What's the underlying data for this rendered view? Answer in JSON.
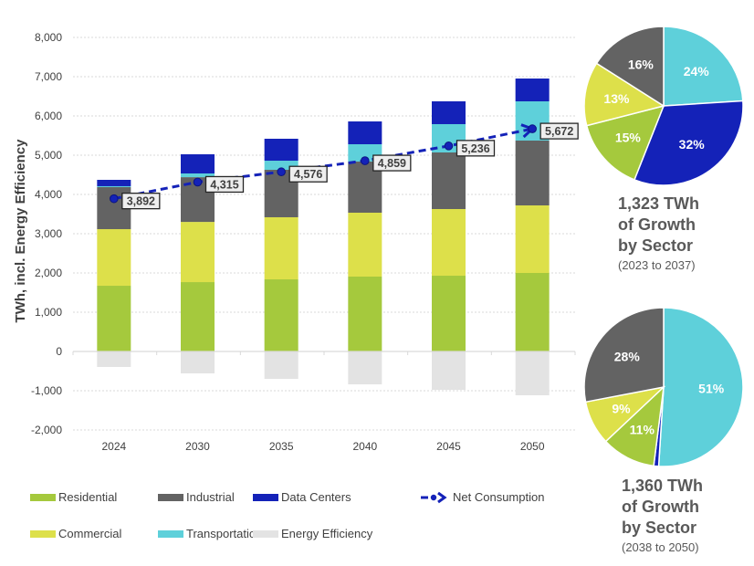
{
  "chart_data": [
    {
      "type": "bar",
      "stacked": true,
      "title": "",
      "xlabel": "",
      "ylabel": "TWh, incl. Energy Efficiency",
      "ylim": [
        -2000,
        8000
      ],
      "yticks": [
        -2000,
        -1000,
        0,
        1000,
        2000,
        3000,
        4000,
        5000,
        6000,
        7000,
        8000
      ],
      "ytick_labels": [
        "-2,000",
        "-1,000",
        "0",
        "1,000",
        "2,000",
        "3,000",
        "4,000",
        "5,000",
        "6,000",
        "7,000",
        "8,000"
      ],
      "grid": true,
      "categories": [
        "2024",
        "2030",
        "2035",
        "2040",
        "2045",
        "2050"
      ],
      "series": [
        {
          "name": "Residential",
          "color": "#a5c93d",
          "values": [
            1674,
            1767,
            1837,
            1907,
            1930,
            2000
          ]
        },
        {
          "name": "Commercial",
          "color": "#dde04a",
          "values": [
            1442,
            1533,
            1582,
            1628,
            1698,
            1721
          ]
        },
        {
          "name": "Industrial",
          "color": "#636363",
          "values": [
            1070,
            1140,
            1209,
            1302,
            1442,
            1651
          ]
        },
        {
          "name": "Transportation",
          "color": "#5ed0da",
          "values": [
            24,
            95,
            232,
            442,
            721,
            1000
          ]
        },
        {
          "name": "Data Centers",
          "color": "#1422b8",
          "values": [
            162,
            488,
            559,
            581,
            581,
            581
          ]
        },
        {
          "name": "Energy Efficiency",
          "color": "#e3e3e3",
          "values": [
            -395,
            -558,
            -698,
            -837,
            -977,
            -1116
          ]
        }
      ],
      "line_series": {
        "name": "Net Consumption",
        "color": "#1422b8",
        "style": "dashed",
        "values": [
          3892,
          4315,
          4576,
          4859,
          5236,
          5672
        ],
        "labels": [
          "3,892",
          "4,315",
          "4,576",
          "4,859",
          "5,236",
          "5,672"
        ]
      },
      "legend": {
        "placement": "bottom",
        "rows": [
          [
            "Residential",
            "Industrial",
            "Data Centers",
            "Net Consumption"
          ],
          [
            "Commercial",
            "Transportation",
            "Energy Efficiency"
          ]
        ]
      }
    },
    {
      "type": "pie",
      "title": "1,323 TWh of Growth by Sector",
      "subtitle": "(2023 to 2037)",
      "slices": [
        {
          "name": "Transportation",
          "value": 24,
          "label": "24%",
          "color": "#5ed0da"
        },
        {
          "name": "Data Centers",
          "value": 32,
          "label": "32%",
          "color": "#1422b8"
        },
        {
          "name": "Residential",
          "value": 15,
          "label": "15%",
          "color": "#a5c93d"
        },
        {
          "name": "Commercial",
          "value": 13,
          "label": "13%",
          "color": "#dde04a"
        },
        {
          "name": "Industrial",
          "value": 16,
          "label": "16%",
          "color": "#636363"
        }
      ]
    },
    {
      "type": "pie",
      "title": "1,360 TWh of Growth by Sector",
      "subtitle": "(2038 to 2050)",
      "slices": [
        {
          "name": "Transportation",
          "value": 51,
          "label": "51%",
          "color": "#5ed0da"
        },
        {
          "name": "Data Centers",
          "value": 1,
          "label": "",
          "color": "#1422b8"
        },
        {
          "name": "Residential",
          "value": 11,
          "label": "11%",
          "color": "#a5c93d"
        },
        {
          "name": "Commercial",
          "value": 9,
          "label": "9%",
          "color": "#dde04a"
        },
        {
          "name": "Industrial",
          "value": 28,
          "label": "28%",
          "color": "#636363"
        }
      ]
    }
  ],
  "legend": {
    "residential": "Residential",
    "industrial": "Industrial",
    "data_centers": "Data Centers",
    "net_consumption": "Net Consumption",
    "commercial": "Commercial",
    "transportation": "Transportation",
    "energy_efficiency": "Energy Efficiency"
  },
  "pie_captions": [
    {
      "line1": "1,323 TWh",
      "line2": "of Growth",
      "line3": "by Sector",
      "range": "(2023 to 2037)"
    },
    {
      "line1": "1,360 TWh",
      "line2": "of Growth",
      "line3": "by Sector",
      "range": "(2038 to 2050)"
    }
  ],
  "colors": {
    "residential": "#a5c93d",
    "commercial": "#dde04a",
    "industrial": "#636363",
    "transportation": "#5ed0da",
    "data_centers": "#1422b8",
    "energy_efficiency": "#e3e3e3"
  }
}
